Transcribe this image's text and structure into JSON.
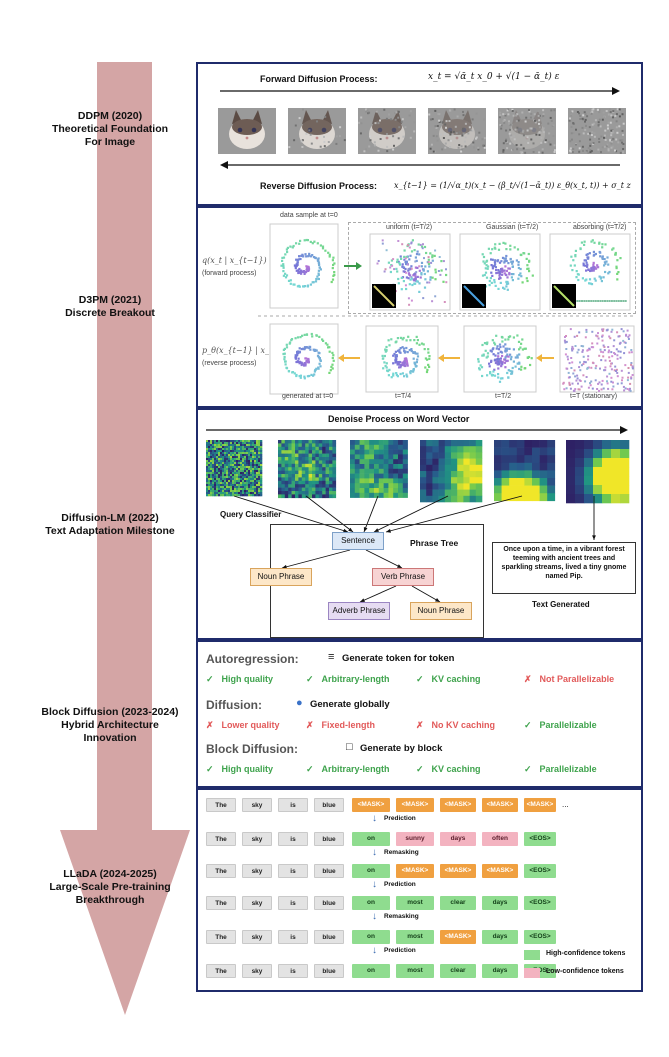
{
  "colors": {
    "arrow": "#d4a5a5",
    "panel_border": "#1f2b6b",
    "token_green": "#8fdc8f",
    "token_mask": "#f0a040",
    "token_pink": "#f3b3c0",
    "good": "#3fa34d",
    "bad": "#e25a5a"
  },
  "eras": [
    {
      "title": "DDPM (2020)",
      "subtitle": "Theoretical Foundation",
      "subtitle2": "For Image"
    },
    {
      "title": "D3PM (2021)",
      "subtitle": "Discrete Breakout",
      "subtitle2": ""
    },
    {
      "title": "Diffusion-LM (2022)",
      "subtitle": "Text Adaptation Milestone",
      "subtitle2": ""
    },
    {
      "title": "Block Diffusion (2023-2024)",
      "subtitle": "Hybrid Architecture",
      "subtitle2": "Innovation"
    },
    {
      "title": "LLaDA (2024-2025)",
      "subtitle": "Large-Scale Pre-training",
      "subtitle2": "Breakthrough"
    }
  ],
  "ddpm": {
    "forward_label": "Forward Diffusion Process:",
    "forward_eq": "x_t = √ᾱ_t x_0 + √(1 − ᾱ_t) ε",
    "reverse_label": "Reverse Diffusion Process:",
    "reverse_eq": "x_{t−1} = (1/√α_t)(x_t − (β_t/√(1−ᾱ_t)) ε_θ(x_t, t)) + σ_t z",
    "noise_levels": [
      0.0,
      0.15,
      0.3,
      0.5,
      0.75,
      1.0
    ]
  },
  "d3pm": {
    "q_label": "q(x_t | x_{t−1})",
    "q_sub": "(forward process)",
    "p_label": "p_θ(x_{t−1} | x_t)",
    "p_sub": "(reverse process)",
    "top_captions": [
      "data sample at t=0",
      "uniform (t=T/2)",
      "Gaussian (t=T/2)",
      "absorbing (t=T/2)"
    ],
    "bottom_captions": [
      "generated at t=0",
      "t=T/4",
      "t=T/2",
      "t=T (stationary)"
    ]
  },
  "difflm": {
    "title": "Denoise Process on Word Vector",
    "query_label": "Query Classifier",
    "tree_title": "Phrase Tree",
    "sentence": "Sentence",
    "noun_phrase": "Noun Phrase",
    "verb_phrase": "Verb Phrase",
    "adverb_phrase": "Adverb Phrase",
    "noun_phrase2": "Noun Phrase",
    "story": "Once upon a time, in a vibrant forest teeming with ancient trees and sparkling streams, lived a tiny gnome named Pip.",
    "text_generated": "Text Generated"
  },
  "block": {
    "rows": [
      {
        "name": "Autoregression:",
        "mode": "Generate token for token",
        "features": [
          {
            "mark": "✓",
            "text": "High quality",
            "good": true
          },
          {
            "mark": "✓",
            "text": "Arbitrary-length",
            "good": true
          },
          {
            "mark": "✓",
            "text": "KV caching",
            "good": true
          },
          {
            "mark": "✗",
            "text": "Not Parallelizable",
            "good": false
          }
        ]
      },
      {
        "name": "Diffusion:",
        "mode": "Generate globally",
        "features": [
          {
            "mark": "✗",
            "text": "Lower quality",
            "good": false
          },
          {
            "mark": "✗",
            "text": "Fixed-length",
            "good": false
          },
          {
            "mark": "✗",
            "text": "No KV caching",
            "good": false
          },
          {
            "mark": "✓",
            "text": "Parallelizable",
            "good": true
          }
        ]
      },
      {
        "name": "Block Diffusion:",
        "mode": "Generate by block",
        "features": [
          {
            "mark": "✓",
            "text": "High quality",
            "good": true
          },
          {
            "mark": "✓",
            "text": "Arbitrary-length",
            "good": true
          },
          {
            "mark": "✓",
            "text": "KV caching",
            "good": true
          },
          {
            "mark": "✓",
            "text": "Parallelizable",
            "good": true
          }
        ]
      }
    ]
  },
  "llada": {
    "rows": [
      {
        "tokens": [
          [
            "The",
            "gray"
          ],
          [
            "sky",
            "gray"
          ],
          [
            "is",
            "gray"
          ],
          [
            "blue",
            "gray"
          ],
          [
            "<MASK>",
            "mask"
          ],
          [
            "<MASK>",
            "mask"
          ],
          [
            "<MASK>",
            "mask"
          ],
          [
            "<MASK>",
            "mask"
          ],
          [
            "<MASK>",
            "mask"
          ]
        ],
        "trail": "..."
      },
      {
        "tokens": [
          [
            "The",
            "gray"
          ],
          [
            "sky",
            "gray"
          ],
          [
            "is",
            "gray"
          ],
          [
            "blue",
            "gray"
          ],
          [
            "on",
            "green"
          ],
          [
            "sunny",
            "pink"
          ],
          [
            "days",
            "pink"
          ],
          [
            "often",
            "pink"
          ],
          [
            "<EOS>",
            "green"
          ]
        ],
        "trail": ""
      },
      {
        "tokens": [
          [
            "The",
            "gray"
          ],
          [
            "sky",
            "gray"
          ],
          [
            "is",
            "gray"
          ],
          [
            "blue",
            "gray"
          ],
          [
            "on",
            "green"
          ],
          [
            "<MASK>",
            "mask"
          ],
          [
            "<MASK>",
            "mask"
          ],
          [
            "<MASK>",
            "mask"
          ],
          [
            "<EOS>",
            "green"
          ]
        ],
        "trail": ""
      },
      {
        "tokens": [
          [
            "The",
            "gray"
          ],
          [
            "sky",
            "gray"
          ],
          [
            "is",
            "gray"
          ],
          [
            "blue",
            "gray"
          ],
          [
            "on",
            "green"
          ],
          [
            "most",
            "green"
          ],
          [
            "clear",
            "green"
          ],
          [
            "days",
            "green"
          ],
          [
            "<EOS>",
            "green"
          ]
        ],
        "trail": ""
      },
      {
        "tokens": [
          [
            "The",
            "gray"
          ],
          [
            "sky",
            "gray"
          ],
          [
            "is",
            "gray"
          ],
          [
            "blue",
            "gray"
          ],
          [
            "on",
            "green"
          ],
          [
            "most",
            "green"
          ],
          [
            "<MASK>",
            "mask"
          ],
          [
            "days",
            "green"
          ],
          [
            "<EOS>",
            "green"
          ]
        ],
        "trail": ""
      },
      {
        "tokens": [
          [
            "The",
            "gray"
          ],
          [
            "sky",
            "gray"
          ],
          [
            "is",
            "gray"
          ],
          [
            "blue",
            "gray"
          ],
          [
            "on",
            "green"
          ],
          [
            "most",
            "green"
          ],
          [
            "clear",
            "green"
          ],
          [
            "days",
            "green"
          ],
          [
            "<EOS>",
            "green"
          ]
        ],
        "trail": ""
      }
    ],
    "steps": [
      "Prediction",
      "Remasking",
      "Prediction",
      "Remasking",
      "Prediction"
    ],
    "legend_high": "High-confidence tokens",
    "legend_low": "Low-confidence tokens"
  }
}
